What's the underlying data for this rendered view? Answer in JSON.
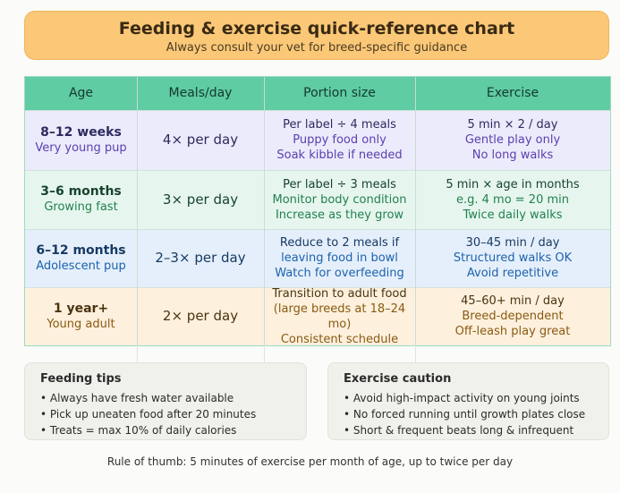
{
  "header": {
    "title": "Feeding & exercise quick-reference chart",
    "subtitle": "Always consult your vet for breed-specific guidance"
  },
  "table": {
    "columns": [
      "Age",
      "Meals/day",
      "Portion size",
      "Exercise"
    ],
    "rows": [
      [
        [
          "8–12 weeks",
          "Very young pup"
        ],
        [
          "4× per day"
        ],
        [
          "Per label ÷ 4 meals",
          "Puppy food only",
          "Soak kibble if needed"
        ],
        [
          "5 min × 2 / day",
          "Gentle play only",
          "No long walks"
        ]
      ],
      [
        [
          "3–6 months",
          "Growing fast"
        ],
        [
          "3× per day"
        ],
        [
          "Per label ÷ 3 meals",
          "Monitor body condition",
          "Increase as they grow"
        ],
        [
          "5 min × age in months",
          "e.g. 4 mo = 20 min",
          "Twice daily walks"
        ]
      ],
      [
        [
          "6–12 months",
          "Adolescent pup"
        ],
        [
          "2–3× per day"
        ],
        [
          "Reduce to 2 meals if",
          "leaving food in bowl",
          "Watch for overfeeding"
        ],
        [
          "30–45 min / day",
          "Structured walks OK",
          "Avoid repetitive"
        ]
      ],
      [
        [
          "1 year+",
          "Young adult"
        ],
        [
          "2× per day"
        ],
        [
          "Transition to adult food",
          "(large breeds at 18–24 mo)",
          "Consistent schedule"
        ],
        [
          "45–60+ min / day",
          "Breed-dependent",
          "Off-leash play great"
        ]
      ]
    ]
  },
  "tips": [
    {
      "title": "Feeding tips",
      "items": [
        "• Always have fresh water available",
        "• Pick up uneaten food after 20 minutes",
        "• Treats = max 10% of daily calories"
      ]
    },
    {
      "title": "Exercise caution",
      "items": [
        "• Avoid high-impact activity on young joints",
        "• No forced running until growth plates close",
        "• Short & frequent beats long & infrequent"
      ]
    }
  ],
  "footer": "Rule of thumb: 5 minutes of exercise per month of age, up to twice per day"
}
